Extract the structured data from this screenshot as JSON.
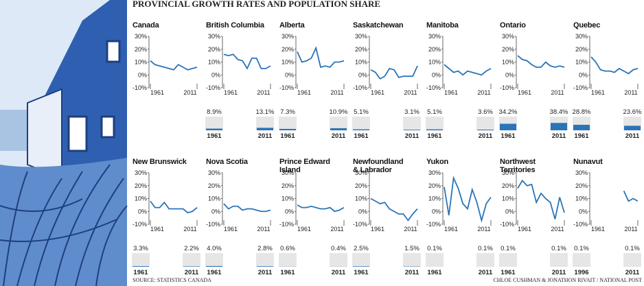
{
  "title": "PROVINCIAL GROWTH RATES AND POPULATION SHARE",
  "source": "SOURCE: STATISTICS CANADA",
  "credit": "CHLOE CUSHMAN & JONATHON RIVAIT / NATIONAL POST",
  "chart_data": [
    {
      "type": "line",
      "title": "Canada",
      "color": "#2a74b8",
      "x": [
        1961,
        1966,
        1971,
        1976,
        1981,
        1986,
        1991,
        1996,
        2001,
        2006,
        2011
      ],
      "values": [
        11,
        8,
        7,
        6,
        5,
        4,
        8,
        6,
        4,
        5,
        6
      ],
      "xlim": [
        1961,
        2011
      ],
      "xticks": [
        1961,
        2011
      ],
      "ylim": [
        -10,
        30
      ],
      "yticks": [
        {
          "value": 30,
          "label": "30%"
        },
        {
          "value": 20,
          "label": "20%"
        },
        {
          "value": 10,
          "label": "10%"
        },
        {
          "value": 0,
          "label": "0%"
        },
        {
          "value": -10,
          "label": "-10%"
        }
      ]
    },
    {
      "type": "line",
      "title": "British Columbia",
      "color": "#2a74b8",
      "x": [
        1961,
        1966,
        1971,
        1976,
        1981,
        1986,
        1991,
        1996,
        2001,
        2006,
        2011
      ],
      "values": [
        16,
        15,
        16,
        12,
        11,
        5,
        13,
        13,
        5,
        5,
        7
      ],
      "xlim": [
        1961,
        2011
      ],
      "xticks": [
        1961,
        2011
      ],
      "ylim": [
        -10,
        30
      ],
      "yticks": [
        {
          "value": 30,
          "label": "30%"
        },
        {
          "value": 20,
          "label": "20%"
        },
        {
          "value": 10,
          "label": "10%"
        },
        {
          "value": 0,
          "label": "0%"
        },
        {
          "value": -10,
          "label": "-10%"
        }
      ],
      "share": {
        "categories": [
          "1961",
          "2011"
        ],
        "values": [
          8.9,
          13.1
        ],
        "value_labels": [
          "8.9%",
          "13.1%"
        ]
      }
    },
    {
      "type": "line",
      "title": "Alberta",
      "color": "#2a74b8",
      "x": [
        1961,
        1966,
        1971,
        1976,
        1981,
        1986,
        1991,
        1996,
        2001,
        2006,
        2011
      ],
      "values": [
        18,
        10,
        11,
        13,
        21,
        6,
        7,
        6,
        10,
        10,
        11
      ],
      "xlim": [
        1961,
        2011
      ],
      "xticks": [
        1961,
        2011
      ],
      "ylim": [
        -10,
        30
      ],
      "yticks": [
        {
          "value": 30,
          "label": "30%"
        },
        {
          "value": 20,
          "label": "20%"
        },
        {
          "value": 10,
          "label": "10%"
        },
        {
          "value": 0,
          "label": "0%"
        },
        {
          "value": -10,
          "label": "-10%"
        }
      ],
      "share": {
        "categories": [
          "1961",
          "2011"
        ],
        "values": [
          7.3,
          10.9
        ],
        "value_labels": [
          "7.3%",
          "10.9%"
        ]
      }
    },
    {
      "type": "line",
      "title": "Saskatchewan",
      "color": "#2a74b8",
      "x": [
        1961,
        1966,
        1971,
        1976,
        1981,
        1986,
        1991,
        1996,
        2001,
        2006,
        2011
      ],
      "values": [
        4,
        2,
        -3,
        -1,
        5,
        4,
        -2,
        -1,
        -1,
        -1,
        7
      ],
      "xlim": [
        1961,
        2011
      ],
      "xticks": [
        1961,
        2011
      ],
      "ylim": [
        -10,
        30
      ],
      "yticks": [
        {
          "value": 30,
          "label": "30%"
        },
        {
          "value": 20,
          "label": "20%"
        },
        {
          "value": 10,
          "label": "10%"
        },
        {
          "value": 0,
          "label": "0%"
        },
        {
          "value": -10,
          "label": "-10%"
        }
      ],
      "share": {
        "categories": [
          "1961",
          "2011"
        ],
        "values": [
          5.1,
          3.1
        ],
        "value_labels": [
          "5.1%",
          "3.1%"
        ]
      }
    },
    {
      "type": "line",
      "title": "Manitoba",
      "color": "#2a74b8",
      "x": [
        1961,
        1966,
        1971,
        1976,
        1981,
        1986,
        1991,
        1996,
        2001,
        2006,
        2011
      ],
      "values": [
        8,
        5,
        2,
        3,
        0,
        3,
        2,
        1,
        0,
        3,
        5
      ],
      "xlim": [
        1961,
        2011
      ],
      "xticks": [
        1961,
        2011
      ],
      "ylim": [
        -10,
        30
      ],
      "yticks": [
        {
          "value": 30,
          "label": "30%"
        },
        {
          "value": 20,
          "label": "20%"
        },
        {
          "value": 10,
          "label": "10%"
        },
        {
          "value": 0,
          "label": "0%"
        },
        {
          "value": -10,
          "label": "-10%"
        }
      ],
      "share": {
        "categories": [
          "1961",
          "2011"
        ],
        "values": [
          5.1,
          3.6
        ],
        "value_labels": [
          "5.1%",
          "3.6%"
        ]
      }
    },
    {
      "type": "line",
      "title": "Ontario",
      "color": "#2a74b8",
      "x": [
        1961,
        1966,
        1971,
        1976,
        1981,
        1986,
        1991,
        1996,
        2001,
        2006,
        2011
      ],
      "values": [
        15,
        12,
        11,
        8,
        6,
        6,
        10,
        7,
        6,
        7,
        6
      ],
      "xlim": [
        1961,
        2011
      ],
      "xticks": [
        1961,
        2011
      ],
      "ylim": [
        -10,
        30
      ],
      "yticks": [
        {
          "value": 30,
          "label": "30%"
        },
        {
          "value": 20,
          "label": "20%"
        },
        {
          "value": 10,
          "label": "10%"
        },
        {
          "value": 0,
          "label": "0%"
        },
        {
          "value": -10,
          "label": "-10%"
        }
      ],
      "share": {
        "categories": [
          "1961",
          "2011"
        ],
        "values": [
          34.2,
          38.4
        ],
        "value_labels": [
          "34.2%",
          "38.4%"
        ]
      }
    },
    {
      "type": "line",
      "title": "Quebec",
      "color": "#2a74b8",
      "x": [
        1961,
        1966,
        1971,
        1976,
        1981,
        1986,
        1991,
        1996,
        2001,
        2006,
        2011
      ],
      "values": [
        14,
        10,
        4,
        3,
        3,
        2,
        5,
        3,
        1,
        4,
        5
      ],
      "xlim": [
        1961,
        2011
      ],
      "xticks": [
        1961,
        2011
      ],
      "ylim": [
        -10,
        30
      ],
      "yticks": [
        {
          "value": 30,
          "label": "30%"
        },
        {
          "value": 20,
          "label": "20%"
        },
        {
          "value": 10,
          "label": "10%"
        },
        {
          "value": 0,
          "label": "0%"
        },
        {
          "value": -10,
          "label": "-10%"
        }
      ],
      "share": {
        "categories": [
          "1961",
          "2011"
        ],
        "values": [
          28.8,
          23.6
        ],
        "value_labels": [
          "28.8%",
          "23.6%"
        ]
      }
    },
    {
      "type": "line",
      "title": "New Brunswick",
      "color": "#2a74b8",
      "x": [
        1961,
        1966,
        1971,
        1976,
        1981,
        1986,
        1991,
        1996,
        2001,
        2006,
        2011
      ],
      "values": [
        8,
        3,
        3,
        7,
        2,
        2,
        2,
        2,
        -1,
        0,
        3
      ],
      "xlim": [
        1961,
        2011
      ],
      "xticks": [
        1961,
        2011
      ],
      "ylim": [
        -10,
        30
      ],
      "yticks": [
        {
          "value": 30,
          "label": "30%"
        },
        {
          "value": 20,
          "label": "20%"
        },
        {
          "value": 10,
          "label": "10%"
        },
        {
          "value": 0,
          "label": "0%"
        },
        {
          "value": -10,
          "label": "-10%"
        }
      ],
      "share": {
        "categories": [
          "1961",
          "2011"
        ],
        "values": [
          3.3,
          2.2
        ],
        "value_labels": [
          "3.3%",
          "2.2%"
        ]
      }
    },
    {
      "type": "line",
      "title": "Nova Scotia",
      "color": "#2a74b8",
      "x": [
        1961,
        1966,
        1971,
        1976,
        1981,
        1986,
        1991,
        1996,
        2001,
        2006,
        2011
      ],
      "values": [
        6,
        2,
        4,
        4,
        1,
        2,
        2,
        1,
        0,
        0,
        1
      ],
      "xlim": [
        1961,
        2011
      ],
      "xticks": [
        1961,
        2011
      ],
      "ylim": [
        -10,
        30
      ],
      "yticks": [
        {
          "value": 30,
          "label": "30%"
        },
        {
          "value": 20,
          "label": "20%"
        },
        {
          "value": 10,
          "label": "10%"
        },
        {
          "value": 0,
          "label": "0%"
        },
        {
          "value": -10,
          "label": "-10%"
        }
      ],
      "share": {
        "categories": [
          "1961",
          "2011"
        ],
        "values": [
          4.0,
          2.8
        ],
        "value_labels": [
          "4.0%",
          "2.8%"
        ]
      }
    },
    {
      "type": "line",
      "title": "Prince Edward\nIsland",
      "color": "#2a74b8",
      "x": [
        1961,
        1966,
        1971,
        1976,
        1981,
        1986,
        1991,
        1996,
        2001,
        2006,
        2011
      ],
      "values": [
        5,
        3,
        3,
        4,
        3,
        2,
        2,
        3,
        0,
        1,
        3
      ],
      "xlim": [
        1961,
        2011
      ],
      "xticks": [
        1961,
        2011
      ],
      "ylim": [
        -10,
        30
      ],
      "yticks": [
        {
          "value": 30,
          "label": "30%"
        },
        {
          "value": 20,
          "label": "20%"
        },
        {
          "value": 10,
          "label": "10%"
        },
        {
          "value": 0,
          "label": "0%"
        },
        {
          "value": -10,
          "label": "-10%"
        }
      ],
      "share": {
        "categories": [
          "1961",
          "2011"
        ],
        "values": [
          0.6,
          0.4
        ],
        "value_labels": [
          "0.6%",
          "0.4%"
        ]
      }
    },
    {
      "type": "line",
      "title": "Newfoundland\n& Labrador",
      "color": "#2a74b8",
      "x": [
        1961,
        1966,
        1971,
        1976,
        1981,
        1986,
        1991,
        1996,
        2001,
        2006,
        2011
      ],
      "values": [
        10,
        8,
        6,
        7,
        2,
        0,
        -2,
        -2,
        -7,
        -2,
        2
      ],
      "xlim": [
        1961,
        2011
      ],
      "xticks": [
        1961,
        2011
      ],
      "ylim": [
        -10,
        30
      ],
      "yticks": [
        {
          "value": 30,
          "label": "30%"
        },
        {
          "value": 20,
          "label": "20%"
        },
        {
          "value": 10,
          "label": "10%"
        },
        {
          "value": 0,
          "label": "0%"
        },
        {
          "value": -10,
          "label": "-10%"
        }
      ],
      "share": {
        "categories": [
          "1961",
          "2011"
        ],
        "values": [
          2.5,
          1.5
        ],
        "value_labels": [
          "2.5%",
          "1.5%"
        ]
      }
    },
    {
      "type": "line",
      "title": "Yukon",
      "color": "#2a74b8",
      "x": [
        1961,
        1966,
        1971,
        1976,
        1981,
        1986,
        1991,
        1996,
        2001,
        2006,
        2011
      ],
      "values": [
        19,
        -3,
        26,
        18,
        6,
        2,
        17,
        7,
        -7,
        6,
        11
      ],
      "xlim": [
        1961,
        2011
      ],
      "xticks": [
        1961,
        2011
      ],
      "ylim": [
        -10,
        30
      ],
      "yticks": [
        {
          "value": 30,
          "label": "30%"
        },
        {
          "value": 20,
          "label": "20%"
        },
        {
          "value": 10,
          "label": "10%"
        },
        {
          "value": 0,
          "label": "0%"
        },
        {
          "value": -10,
          "label": "-10%"
        }
      ],
      "share": {
        "categories": [
          "1961",
          "2011"
        ],
        "values": [
          0.1,
          0.1
        ],
        "value_labels": [
          "0.1%",
          "0.1%"
        ]
      }
    },
    {
      "type": "line",
      "title": "Northwest\nTerritories",
      "color": "#2a74b8",
      "x": [
        1961,
        1966,
        1971,
        1976,
        1981,
        1986,
        1991,
        1996,
        2001,
        2006,
        2011
      ],
      "values": [
        18,
        24,
        20,
        21,
        7,
        14,
        10,
        7,
        -6,
        11,
        -1
      ],
      "xlim": [
        1961,
        2011
      ],
      "xticks": [
        1961,
        2011
      ],
      "ylim": [
        -10,
        30
      ],
      "yticks": [
        {
          "value": 30,
          "label": "30%"
        },
        {
          "value": 20,
          "label": "20%"
        },
        {
          "value": 10,
          "label": "10%"
        },
        {
          "value": 0,
          "label": "0%"
        },
        {
          "value": -10,
          "label": "-10%"
        }
      ],
      "share": {
        "categories": [
          "1961",
          "2011"
        ],
        "values": [
          0.1,
          0.1
        ],
        "value_labels": [
          "0.1%",
          "0.1%"
        ]
      }
    },
    {
      "type": "line",
      "title": "Nunavut",
      "color": "#2a74b8",
      "x": [
        1961,
        1966,
        1971,
        1976,
        1981,
        1986,
        1991,
        1996,
        2001,
        2006,
        2011
      ],
      "values": [
        null,
        null,
        null,
        null,
        null,
        null,
        null,
        16,
        8,
        10,
        8
      ],
      "xlim": [
        1961,
        2011
      ],
      "xticks": [
        1961,
        2011
      ],
      "ylim": [
        -10,
        30
      ],
      "yticks": [
        {
          "value": 30,
          "label": "30%"
        },
        {
          "value": 20,
          "label": "20%"
        },
        {
          "value": 10,
          "label": "10%"
        },
        {
          "value": 0,
          "label": "0%"
        },
        {
          "value": -10,
          "label": "-10%"
        }
      ],
      "share": {
        "categories": [
          "1996",
          "2011"
        ],
        "values": [
          0.1,
          0.1
        ],
        "value_labels": [
          "0.1%",
          "0.1%"
        ]
      }
    }
  ]
}
